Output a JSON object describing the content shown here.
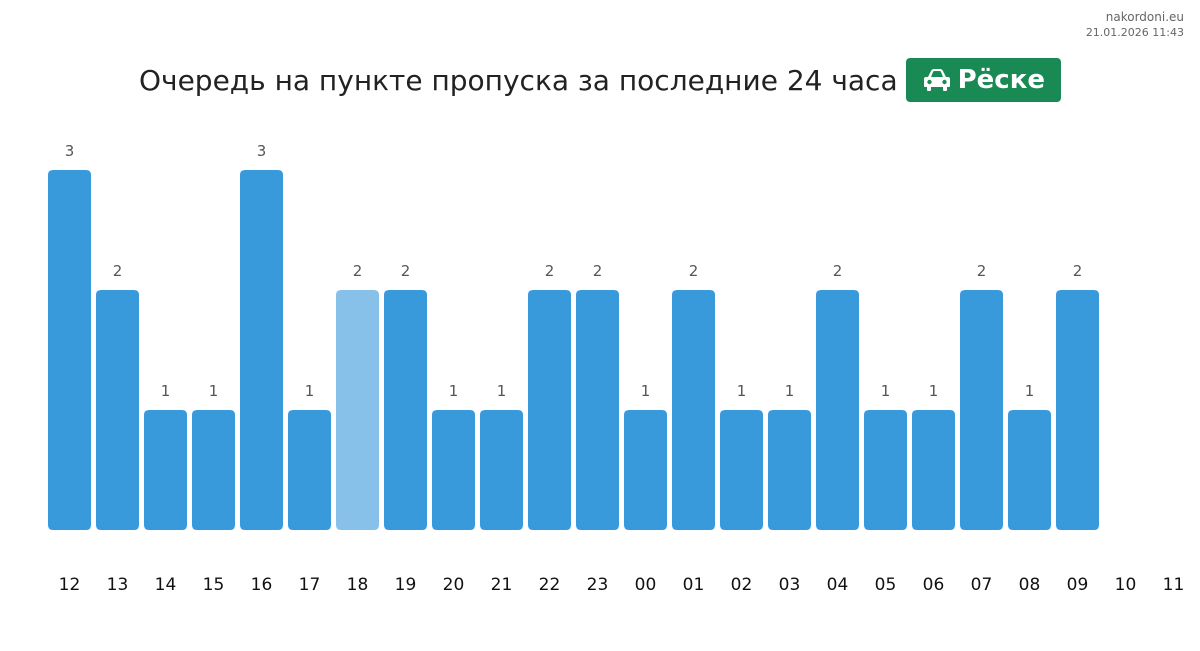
{
  "site": {
    "domain": "nakordoni.eu",
    "timestamp": "21.01.2026 11:43"
  },
  "header": {
    "title": "Очередь на пункте пропуска за последние 24 часа",
    "badge_label": "Рёске",
    "badge_icon": "car-icon",
    "badge_color": "#1a8a55"
  },
  "chart_data": {
    "type": "bar",
    "title": "Очередь на пункте пропуска за последние 24 часа",
    "xlabel": "",
    "ylabel": "",
    "categories": [
      "12",
      "13",
      "14",
      "15",
      "16",
      "17",
      "18",
      "19",
      "20",
      "21",
      "22",
      "23",
      "00",
      "01",
      "02",
      "03",
      "04",
      "05",
      "06",
      "07",
      "08",
      "09",
      "10",
      "11"
    ],
    "values": [
      3,
      2,
      1,
      1,
      3,
      1,
      2,
      2,
      1,
      1,
      2,
      2,
      1,
      2,
      1,
      1,
      2,
      1,
      1,
      2,
      1,
      2,
      null,
      null
    ],
    "highlight_index": 6,
    "colors": {
      "bar": "#3899db",
      "highlight": "#87c1e9"
    },
    "ylim": [
      0,
      3
    ],
    "grid": false,
    "legend": "none"
  }
}
